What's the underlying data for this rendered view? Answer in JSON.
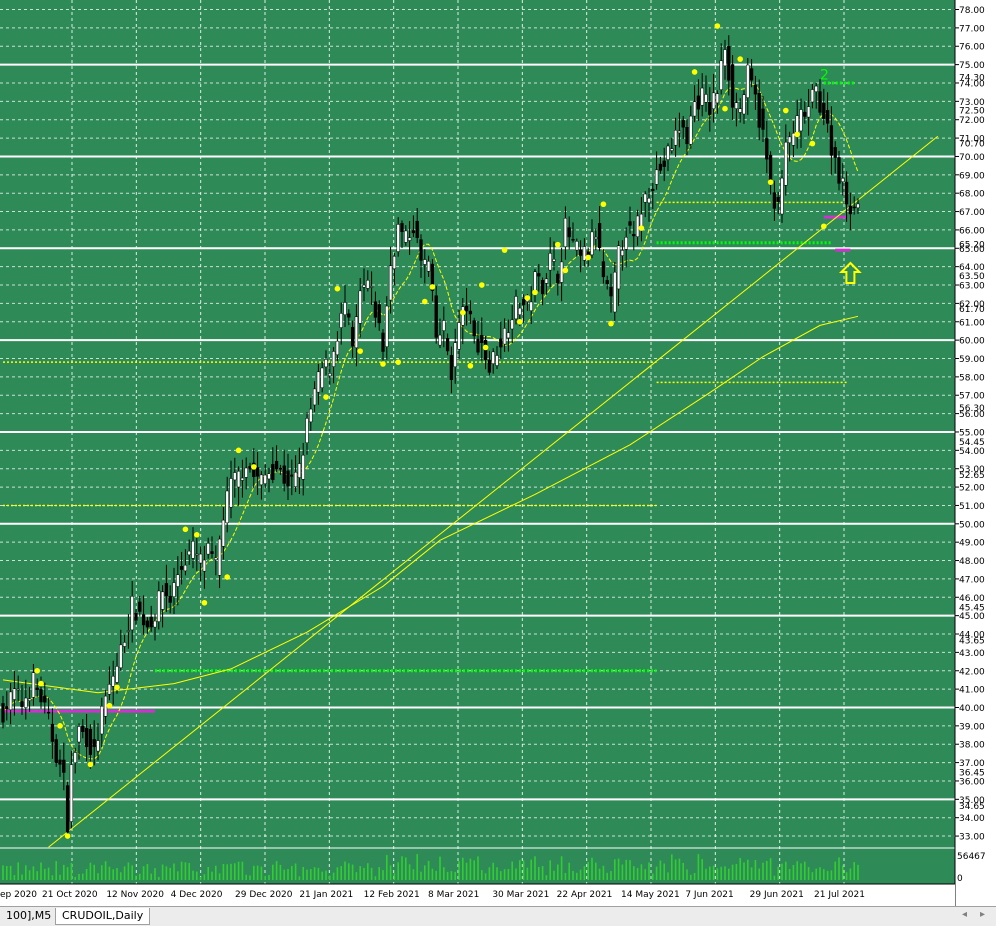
{
  "tabs": [
    {
      "label": "100],M5",
      "active": false
    },
    {
      "label": "CRUDOIL,Daily",
      "active": true
    }
  ],
  "nav": {
    "left": "◂",
    "right": "▸"
  },
  "colors": {
    "background": "#2e8b57",
    "grid": "#ffffff",
    "bull_candle": "#ffffff",
    "bear_candle": "#000000",
    "wick": "#000000",
    "ma": "#ffff00",
    "fractal": "#ffff00",
    "green_level": "#00ff00",
    "magenta_level": "#cc33cc",
    "trendline": "#ffff00"
  },
  "chart_data": {
    "type": "candlestick",
    "symbol": "CRUDOIL",
    "timeframe": "Daily",
    "y_axis": {
      "range": [
        32.35,
        78.3
      ],
      "ticks": [
        "78.00",
        "77.00",
        "76.00",
        "75.00",
        "74.00",
        "73.00",
        "72.00",
        "71.00",
        "70.00",
        "69.00",
        "68.00",
        "67.00",
        "66.00",
        "65.00",
        "64.00",
        "63.00",
        "62.00",
        "61.00",
        "60.00",
        "59.00",
        "58.00",
        "57.00",
        "56.00",
        "55.00",
        "54.00",
        "53.00",
        "52.00",
        "51.00",
        "50.00",
        "49.00",
        "48.00",
        "47.00",
        "46.00",
        "45.00",
        "44.00",
        "43.00",
        "42.00",
        "41.00",
        "40.00",
        "39.00",
        "38.00",
        "37.00",
        "36.00",
        "35.00",
        "34.00",
        "33.00"
      ],
      "extra_labels": [
        "74.30",
        "72.50",
        "70.70",
        "65.20",
        "63.50",
        "61.70",
        "56.30",
        "54.45",
        "52.65",
        "45.45",
        "43.65",
        "36.45",
        "34.65"
      ],
      "major_levels": [
        75,
        70,
        65,
        60,
        55,
        50,
        45,
        40,
        35
      ]
    },
    "x_axis": {
      "labels": [
        "ep 2020",
        "21 Oct 2020",
        "12 Nov 2020",
        "4 Dec 2020",
        "29 Dec 2020",
        "21 Jan 2021",
        "12 Feb 2021",
        "8 Mar 2021",
        "30 Mar 2021",
        "22 Apr 2021",
        "14 May 2021",
        "7 Jun 2021",
        "29 Jun 2021",
        "21 Jul 2021"
      ]
    },
    "volume_axis": {
      "labels": [
        "56467",
        "0"
      ]
    },
    "anchors": [
      [
        0,
        39.8
      ],
      [
        3,
        40.8
      ],
      [
        5,
        40.2
      ],
      [
        8,
        41.4
      ],
      [
        10,
        40.5
      ],
      [
        12,
        39.2
      ],
      [
        14,
        37.5
      ],
      [
        16,
        36.0
      ],
      [
        17,
        33.8
      ],
      [
        18,
        36.6
      ],
      [
        20,
        38.8
      ],
      [
        22,
        38.4
      ],
      [
        24,
        37.4
      ],
      [
        26,
        39.6
      ],
      [
        28,
        41.1
      ],
      [
        30,
        42.3
      ],
      [
        32,
        43.9
      ],
      [
        34,
        45.5
      ],
      [
        36,
        45.1
      ],
      [
        38,
        44.5
      ],
      [
        40,
        45.1
      ],
      [
        42,
        46.4
      ],
      [
        44,
        45.9
      ],
      [
        46,
        47.3
      ],
      [
        48,
        48.1
      ],
      [
        50,
        48.6
      ],
      [
        52,
        47.9
      ],
      [
        54,
        48.4
      ],
      [
        56,
        47.6
      ],
      [
        58,
        50.5
      ],
      [
        60,
        52.1
      ],
      [
        62,
        52.6
      ],
      [
        64,
        53.4
      ],
      [
        66,
        52.6
      ],
      [
        68,
        52.3
      ],
      [
        70,
        52.9
      ],
      [
        72,
        53.1
      ],
      [
        74,
        52.5
      ],
      [
        76,
        52.2
      ],
      [
        78,
        52.9
      ],
      [
        80,
        55.3
      ],
      [
        82,
        57.1
      ],
      [
        84,
        58.4
      ],
      [
        86,
        58.6
      ],
      [
        88,
        60.4
      ],
      [
        90,
        61.9
      ],
      [
        92,
        59.4
      ],
      [
        94,
        62.4
      ],
      [
        96,
        63.1
      ],
      [
        98,
        61.6
      ],
      [
        100,
        59.6
      ],
      [
        102,
        64.1
      ],
      [
        104,
        66.1
      ],
      [
        106,
        65.4
      ],
      [
        108,
        66.3
      ],
      [
        110,
        64.2
      ],
      [
        112,
        64.1
      ],
      [
        114,
        60.1
      ],
      [
        116,
        60.6
      ],
      [
        118,
        58.3
      ],
      [
        120,
        60.9
      ],
      [
        122,
        61.9
      ],
      [
        124,
        60.0
      ],
      [
        126,
        59.8
      ],
      [
        128,
        58.4
      ],
      [
        130,
        59.6
      ],
      [
        132,
        60.4
      ],
      [
        134,
        61.6
      ],
      [
        136,
        62.1
      ],
      [
        138,
        61.7
      ],
      [
        140,
        63.3
      ],
      [
        142,
        63.1
      ],
      [
        144,
        64.4
      ],
      [
        146,
        63.6
      ],
      [
        148,
        66.1
      ],
      [
        150,
        65.2
      ],
      [
        152,
        64.4
      ],
      [
        154,
        64.9
      ],
      [
        156,
        65.9
      ],
      [
        158,
        63.4
      ],
      [
        160,
        61.9
      ],
      [
        162,
        64.6
      ],
      [
        164,
        66.1
      ],
      [
        166,
        65.4
      ],
      [
        168,
        67.2
      ],
      [
        170,
        68.3
      ],
      [
        172,
        69.1
      ],
      [
        174,
        69.6
      ],
      [
        176,
        70.6
      ],
      [
        178,
        71.6
      ],
      [
        180,
        71.1
      ],
      [
        182,
        72.9
      ],
      [
        184,
        73.3
      ],
      [
        186,
        72.6
      ],
      [
        188,
        73.6
      ],
      [
        190,
        76.1
      ],
      [
        192,
        73.1
      ],
      [
        194,
        72.6
      ],
      [
        196,
        74.4
      ],
      [
        198,
        73.1
      ],
      [
        200,
        71.1
      ],
      [
        202,
        68.4
      ],
      [
        204,
        67.1
      ],
      [
        206,
        70.4
      ],
      [
        208,
        71.4
      ],
      [
        210,
        72.1
      ],
      [
        212,
        72.6
      ],
      [
        214,
        73.6
      ],
      [
        216,
        72.3
      ],
      [
        218,
        70.6
      ],
      [
        220,
        69.1
      ],
      [
        222,
        67.6
      ],
      [
        224,
        67.3
      ],
      [
        225,
        67.6
      ]
    ],
    "fractals_up": [
      [
        9,
        42.0
      ],
      [
        10,
        41.3
      ],
      [
        30,
        41.1
      ],
      [
        48,
        49.7
      ],
      [
        51,
        49.4
      ],
      [
        62,
        54.0
      ],
      [
        66,
        53.1
      ],
      [
        88,
        62.8
      ],
      [
        111,
        62.1
      ],
      [
        113,
        62.9
      ],
      [
        121,
        61.5
      ],
      [
        126,
        63.0
      ],
      [
        132,
        64.9
      ],
      [
        138,
        62.3
      ],
      [
        140,
        62.6
      ],
      [
        146,
        65.2
      ],
      [
        154,
        64.5
      ],
      [
        158,
        67.4
      ],
      [
        182,
        74.6
      ],
      [
        188,
        77.1
      ],
      [
        194,
        75.3
      ],
      [
        206,
        72.5
      ],
      [
        213,
        70.7
      ]
    ],
    "fractals_down": [
      [
        15,
        39.0
      ],
      [
        17,
        33.0
      ],
      [
        23,
        36.9
      ],
      [
        28,
        40.1
      ],
      [
        53,
        45.7
      ],
      [
        59,
        47.1
      ],
      [
        85,
        56.9
      ],
      [
        94,
        59.4
      ],
      [
        100,
        58.7
      ],
      [
        104,
        58.8
      ],
      [
        123,
        58.6
      ],
      [
        127,
        59.6
      ],
      [
        136,
        61.0
      ],
      [
        148,
        63.8
      ],
      [
        160,
        60.9
      ],
      [
        168,
        66.1
      ],
      [
        190,
        72.6
      ],
      [
        202,
        68.6
      ],
      [
        209,
        71.2
      ],
      [
        216,
        66.2
      ]
    ],
    "levels": [
      {
        "kind": "green",
        "y": 42.0,
        "from": 40,
        "to": 172
      },
      {
        "kind": "green",
        "y": 65.3,
        "from": 172,
        "to": 218
      },
      {
        "kind": "magenta",
        "y": 39.8,
        "from": 0,
        "to": 40
      },
      {
        "kind": "yellow",
        "y": 58.8,
        "from": 0,
        "to": 172
      },
      {
        "kind": "yellow",
        "y": 51.0,
        "from": 0,
        "to": 172
      },
      {
        "kind": "yellow",
        "y": 67.5,
        "from": 172,
        "to": 222
      },
      {
        "kind": "yellow",
        "y": 57.7,
        "from": 172,
        "to": 222
      },
      {
        "kind": "magenta",
        "y": 66.7,
        "from": 216,
        "to": 222
      },
      {
        "kind": "magenta",
        "y": 64.9,
        "from": 219,
        "to": 223
      },
      {
        "kind": "green",
        "y": 74.0,
        "from": 216,
        "to": 224
      }
    ],
    "trendline": {
      "x0": 12,
      "y0": 32.4,
      "x1": 246,
      "y1": 71.1
    },
    "ma200": [
      [
        0,
        41.5
      ],
      [
        25,
        40.8
      ],
      [
        45,
        41.3
      ],
      [
        60,
        42.1
      ],
      [
        80,
        44.1
      ],
      [
        100,
        46.6
      ],
      [
        115,
        49.1
      ],
      [
        140,
        51.6
      ],
      [
        165,
        54.3
      ],
      [
        185,
        57.0
      ],
      [
        200,
        59.1
      ],
      [
        215,
        60.8
      ],
      [
        225,
        61.3
      ]
    ],
    "annotations": [
      {
        "type": "arrow-up",
        "x": 223,
        "y": 64.2
      },
      {
        "type": "label",
        "text": "2",
        "x": 215,
        "y": 74.4
      }
    ]
  }
}
